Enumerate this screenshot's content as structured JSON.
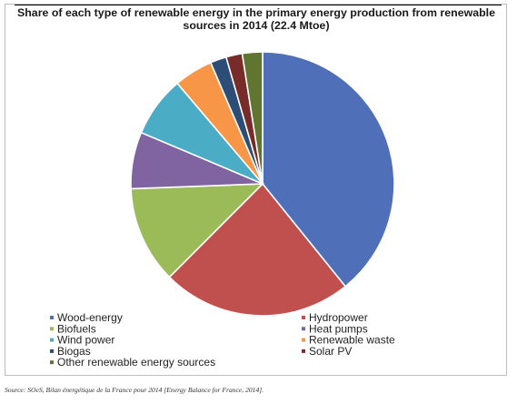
{
  "chart_data": {
    "type": "pie",
    "title": "Share of each type of renewable energy in the primary energy production from renewable sources in 2014 (22.4 Mtoe)",
    "categories": [
      "Wood-energy",
      "Hydropower",
      "Biofuels",
      "Heat pumps",
      "Wind power",
      "Renewable waste",
      "Biogas",
      "Solar PV",
      "Other renewable energy sources"
    ],
    "values": [
      39.5,
      23.5,
      12.0,
      7.0,
      7.5,
      4.8,
      2.0,
      2.0,
      2.5
    ],
    "unit": "%",
    "colors": [
      "#4F6FB8",
      "#C0504D",
      "#9BBB59",
      "#8064A2",
      "#4BACC6",
      "#F79646",
      "#2C4D75",
      "#772C2A",
      "#5F7530"
    ],
    "legend_position": "bottom",
    "legend_columns": 2
  },
  "source_note": "Source: SOeS, Bilan énergétique de la France pour 2014 [Energy Balance for France, 2014]."
}
